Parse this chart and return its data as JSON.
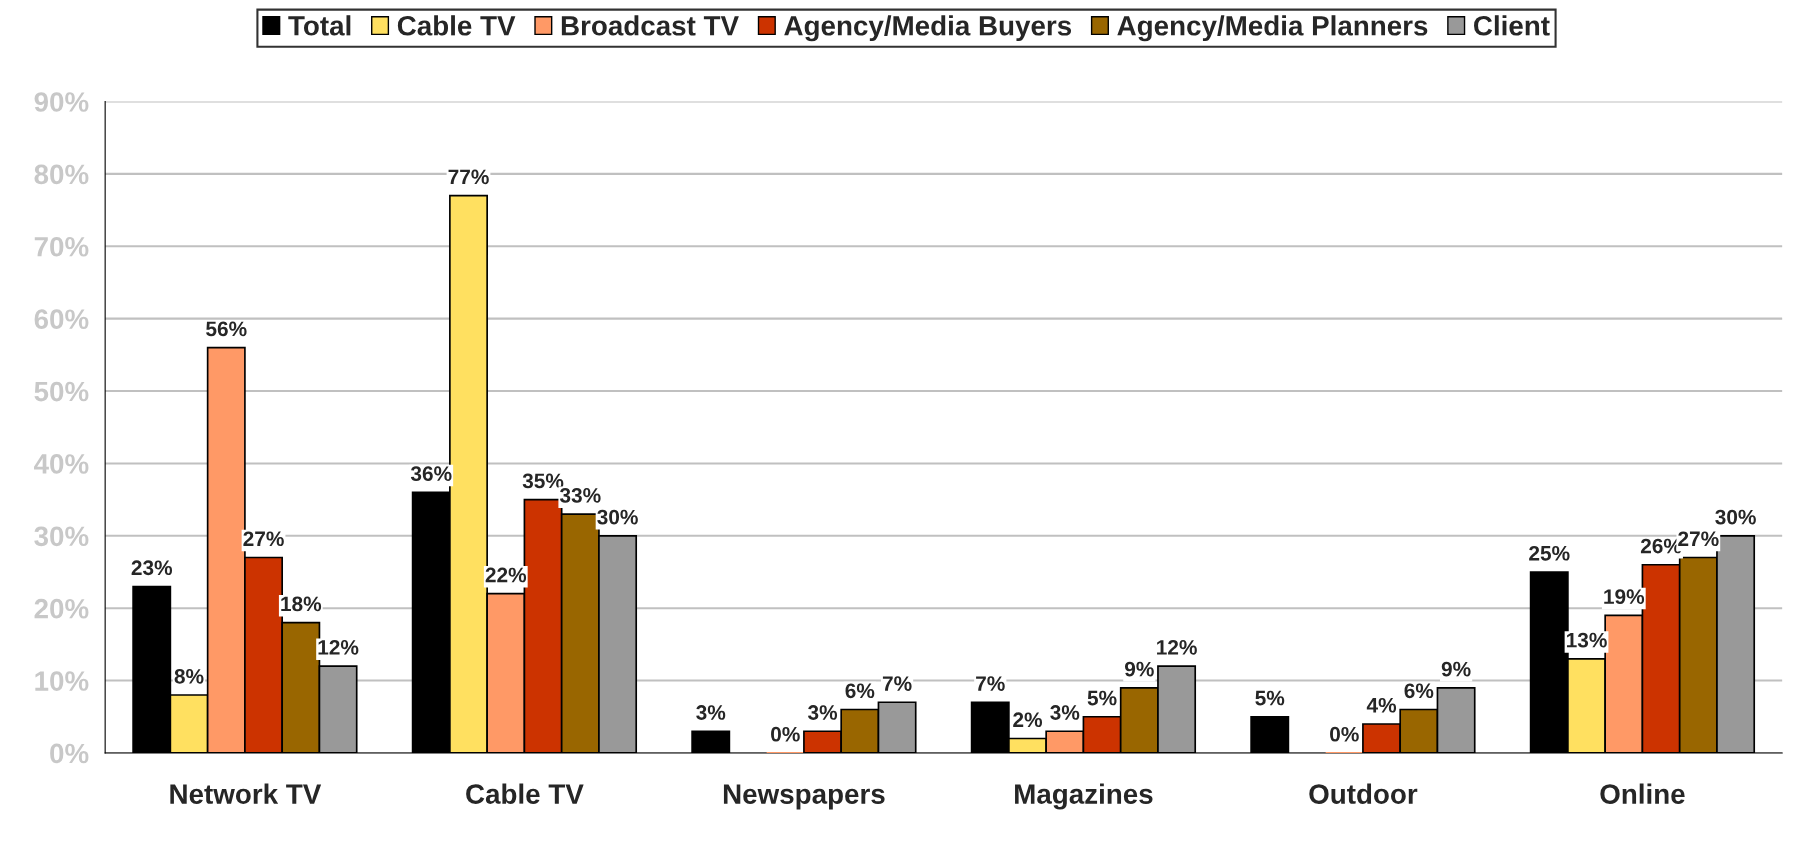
{
  "chart_data": {
    "type": "bar",
    "categories": [
      "Network TV",
      "Cable TV",
      "Newspapers",
      "Magazines",
      "Outdoor",
      "Online"
    ],
    "series": [
      {
        "name": "Total",
        "color": "#000000",
        "values": [
          23,
          36,
          3,
          7,
          5,
          25
        ],
        "value_labels": [
          "23%",
          "36%",
          "3%",
          "7%",
          "5%",
          "25%"
        ]
      },
      {
        "name": "Cable TV",
        "color": "#ffe060",
        "values": [
          8,
          77,
          null,
          2,
          null,
          13
        ],
        "value_labels": [
          "8%",
          "77%",
          null,
          "2%",
          null,
          "13%"
        ]
      },
      {
        "name": "Broadcast TV",
        "color": "#ff9966",
        "values": [
          56,
          22,
          0,
          3,
          0,
          19
        ],
        "value_labels": [
          "56%",
          "22%",
          "0%",
          "3%",
          "0%",
          "19%"
        ]
      },
      {
        "name": "Agency/Media Buyers",
        "color": "#cc3300",
        "values": [
          27,
          35,
          3,
          5,
          4,
          26
        ],
        "value_labels": [
          "27%",
          "35%",
          "3%",
          "5%",
          "4%",
          "26%"
        ]
      },
      {
        "name": "Agency/Media Planners",
        "color": "#996600",
        "values": [
          18,
          33,
          6,
          9,
          6,
          27
        ],
        "value_labels": [
          "18%",
          "33%",
          "6%",
          "9%",
          "6%",
          "27%"
        ]
      },
      {
        "name": "Client",
        "color": "#999999",
        "values": [
          12,
          30,
          7,
          12,
          9,
          30
        ],
        "value_labels": [
          "12%",
          "30%",
          "7%",
          "12%",
          "9%",
          "30%"
        ]
      }
    ],
    "ylim": [
      0,
      90
    ],
    "yticks": [
      {
        "value": 0,
        "label": "0%"
      },
      {
        "value": 10,
        "label": "10%"
      },
      {
        "value": 20,
        "label": "20%"
      },
      {
        "value": 30,
        "label": "30%"
      },
      {
        "value": 40,
        "label": "40%"
      },
      {
        "value": 50,
        "label": "50%"
      },
      {
        "value": 60,
        "label": "60%"
      },
      {
        "value": 70,
        "label": "70%"
      },
      {
        "value": 80,
        "label": "80%"
      },
      {
        "value": 90,
        "label": "90%"
      }
    ],
    "grid": "y",
    "legend": "top"
  }
}
